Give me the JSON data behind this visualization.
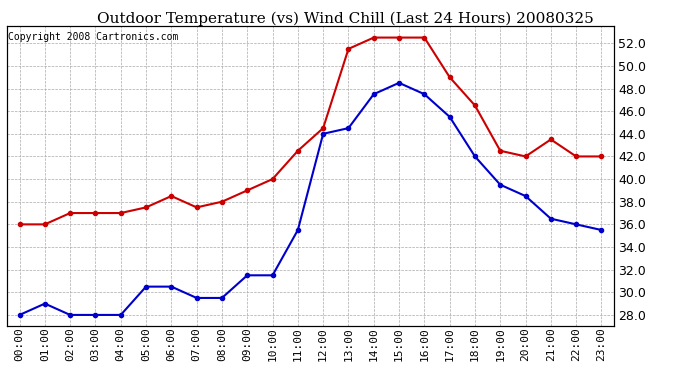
{
  "title": "Outdoor Temperature (vs) Wind Chill (Last 24 Hours) 20080325",
  "copyright": "Copyright 2008 Cartronics.com",
  "hours": [
    "00:00",
    "01:00",
    "02:00",
    "03:00",
    "04:00",
    "05:00",
    "06:00",
    "07:00",
    "08:00",
    "09:00",
    "10:00",
    "11:00",
    "12:00",
    "13:00",
    "14:00",
    "15:00",
    "16:00",
    "17:00",
    "18:00",
    "19:00",
    "20:00",
    "21:00",
    "22:00",
    "23:00"
  ],
  "temp": [
    36.0,
    36.0,
    37.0,
    37.0,
    37.0,
    37.5,
    38.5,
    37.5,
    38.0,
    39.0,
    40.0,
    42.5,
    44.5,
    51.5,
    52.5,
    52.5,
    52.5,
    49.0,
    46.5,
    42.5,
    42.0,
    43.5,
    42.0,
    42.0
  ],
  "windchill": [
    28.0,
    29.0,
    28.0,
    28.0,
    28.0,
    30.5,
    30.5,
    29.5,
    29.5,
    31.5,
    31.5,
    35.5,
    44.0,
    44.5,
    47.5,
    48.5,
    47.5,
    45.5,
    42.0,
    39.5,
    38.5,
    36.5,
    36.0,
    35.5
  ],
  "temp_color": "#cc0000",
  "windchill_color": "#0000cc",
  "ylim": [
    27.0,
    53.5
  ],
  "yticks": [
    28.0,
    30.0,
    32.0,
    34.0,
    36.0,
    38.0,
    40.0,
    42.0,
    44.0,
    46.0,
    48.0,
    50.0,
    52.0
  ],
  "bg_color": "#ffffff",
  "plot_bg_color": "#ffffff",
  "grid_color": "#aaaaaa",
  "title_fontsize": 11,
  "copyright_fontsize": 7,
  "marker": "o",
  "marker_size": 3,
  "line_width": 1.5,
  "tick_labelsize": 9,
  "xtick_labelsize": 8
}
